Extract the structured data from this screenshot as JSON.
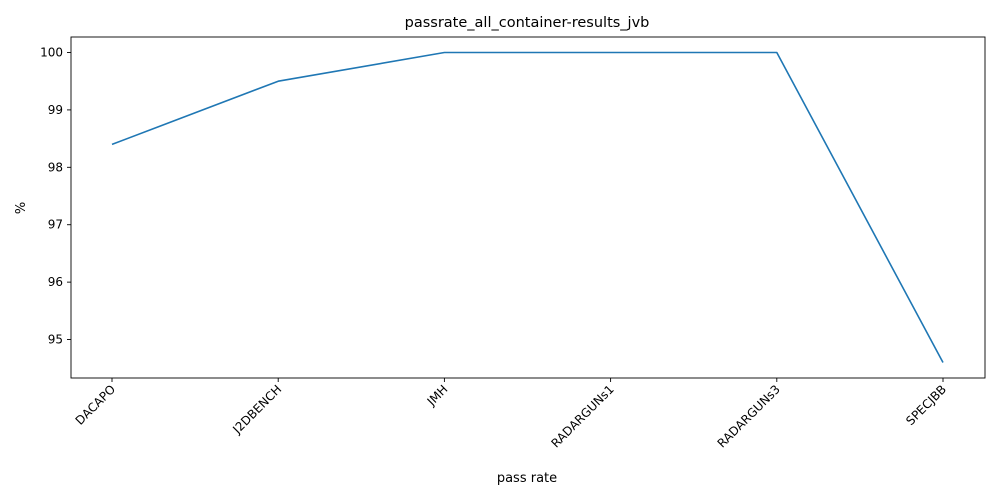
{
  "chart_data": {
    "type": "line",
    "title": "passrate_all_container-results_jvb",
    "xlabel": "pass rate",
    "ylabel": "%",
    "categories": [
      "DACAPO",
      "J2DBENCH",
      "JMH",
      "RADARGUNs1",
      "RADARGUNs3",
      "SPECJBB"
    ],
    "series": [
      {
        "values": [
          98.4,
          99.5,
          100.0,
          100.0,
          100.0,
          94.6
        ]
      }
    ],
    "yticks": [
      95,
      96,
      97,
      98,
      99,
      100
    ],
    "ylim": [
      94.33,
      100.27
    ],
    "grid": false,
    "legend": "none",
    "line_color": "#1f77b4"
  }
}
